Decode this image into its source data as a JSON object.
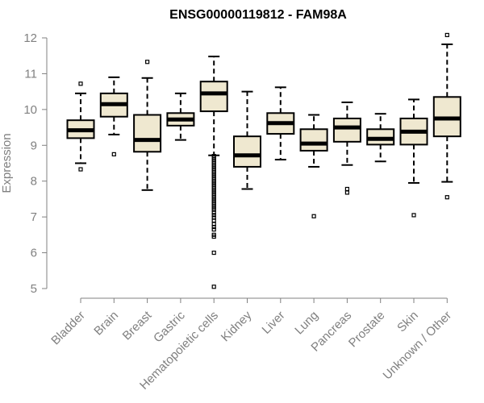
{
  "chart_data": {
    "type": "boxplot",
    "title": "ENSG00000119812 - FAM98A",
    "xlabel": "",
    "ylabel": "Expression",
    "ylim": [
      5,
      12
    ],
    "yticks": [
      5,
      6,
      7,
      8,
      9,
      10,
      11,
      12
    ],
    "grid": false,
    "colors": {
      "box_fill": "#efe8d0",
      "stroke": "#000000",
      "axis": "#808080"
    },
    "categories": [
      "Bladder",
      "Brain",
      "Breast",
      "Gastric",
      "Hematopoietic cells",
      "Kidney",
      "Liver",
      "Lung",
      "Pancreas",
      "Prostate",
      "Skin",
      "Unknown / Other"
    ],
    "boxes": [
      {
        "name": "Bladder",
        "whisker_low": 8.5,
        "q1": 9.2,
        "median": 9.42,
        "q3": 9.7,
        "whisker_high": 10.45,
        "outliers": [
          8.33,
          10.72
        ]
      },
      {
        "name": "Brain",
        "whisker_low": 9.3,
        "q1": 9.8,
        "median": 10.15,
        "q3": 10.45,
        "whisker_high": 10.9,
        "outliers": [
          8.75
        ]
      },
      {
        "name": "Breast",
        "whisker_low": 7.75,
        "q1": 8.82,
        "median": 9.15,
        "q3": 9.85,
        "whisker_high": 10.88,
        "outliers": [
          11.33
        ]
      },
      {
        "name": "Gastric",
        "whisker_low": 9.15,
        "q1": 9.55,
        "median": 9.72,
        "q3": 9.9,
        "whisker_high": 10.45,
        "outliers": []
      },
      {
        "name": "Hematopoietic cells",
        "whisker_low": 8.72,
        "q1": 9.95,
        "median": 10.45,
        "q3": 10.78,
        "whisker_high": 11.48,
        "outliers": [
          8.7,
          8.65,
          8.6,
          8.55,
          8.5,
          8.45,
          8.4,
          8.35,
          8.3,
          8.25,
          8.2,
          8.15,
          8.1,
          8.05,
          8.0,
          7.95,
          7.9,
          7.85,
          7.8,
          7.75,
          7.7,
          7.65,
          7.6,
          7.55,
          7.5,
          7.45,
          7.4,
          7.35,
          7.3,
          7.25,
          7.2,
          7.12,
          7.05,
          6.98,
          6.9,
          6.8,
          6.72,
          6.65,
          6.5,
          6.45,
          6.0,
          5.05
        ]
      },
      {
        "name": "Kidney",
        "whisker_low": 7.78,
        "q1": 8.4,
        "median": 8.72,
        "q3": 9.25,
        "whisker_high": 10.5,
        "outliers": []
      },
      {
        "name": "Liver",
        "whisker_low": 8.6,
        "q1": 9.32,
        "median": 9.62,
        "q3": 9.9,
        "whisker_high": 10.62,
        "outliers": []
      },
      {
        "name": "Lung",
        "whisker_low": 8.4,
        "q1": 8.85,
        "median": 9.05,
        "q3": 9.45,
        "whisker_high": 9.85,
        "outliers": [
          7.02
        ]
      },
      {
        "name": "Pancreas",
        "whisker_low": 8.45,
        "q1": 9.1,
        "median": 9.5,
        "q3": 9.75,
        "whisker_high": 10.2,
        "outliers": [
          7.78,
          7.68
        ]
      },
      {
        "name": "Prostate",
        "whisker_low": 8.55,
        "q1": 9.02,
        "median": 9.18,
        "q3": 9.45,
        "whisker_high": 9.88,
        "outliers": []
      },
      {
        "name": "Skin",
        "whisker_low": 7.95,
        "q1": 9.02,
        "median": 9.38,
        "q3": 9.75,
        "whisker_high": 10.28,
        "outliers": [
          7.05
        ]
      },
      {
        "name": "Unknown / Other",
        "whisker_low": 7.98,
        "q1": 9.25,
        "median": 9.75,
        "q3": 10.35,
        "whisker_high": 11.82,
        "outliers": [
          12.08,
          7.55
        ]
      }
    ]
  }
}
